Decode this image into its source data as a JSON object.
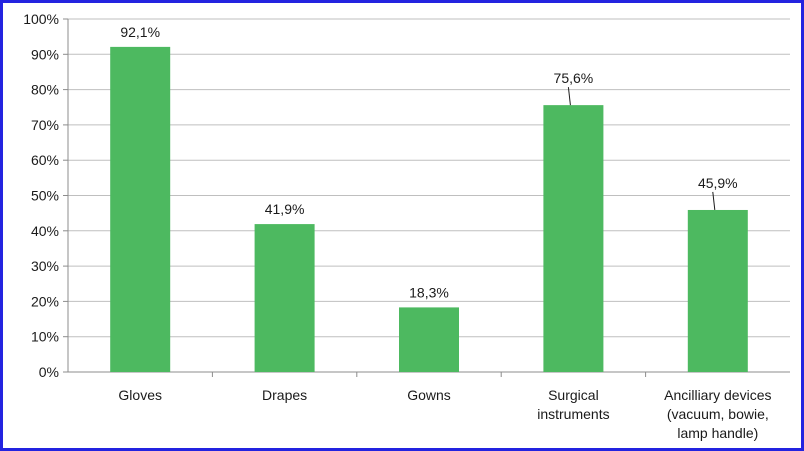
{
  "chart_data": {
    "type": "bar",
    "title": "",
    "xlabel": "",
    "ylabel": "",
    "ylim": [
      0,
      100
    ],
    "yticks": [
      "0%",
      "10%",
      "20%",
      "30%",
      "40%",
      "50%",
      "60%",
      "70%",
      "80%",
      "90%",
      "100%"
    ],
    "grid": true,
    "bar_color": "#4db960",
    "categories": [
      [
        "Gloves"
      ],
      [
        "Drapes"
      ],
      [
        "Gowns"
      ],
      [
        "Surgical",
        "instruments"
      ],
      [
        "Ancilliary devices",
        "(vacuum, bowie,",
        "lamp handle)"
      ]
    ],
    "values": [
      92.1,
      41.9,
      18.3,
      75.6,
      45.9
    ],
    "data_labels": [
      "92,1%",
      "41,9%",
      "18,3%",
      "75,6%",
      "45,9%"
    ]
  },
  "colors": {
    "frame": "#2323e0",
    "bar": "#4db960",
    "grid": "#bfbfbf"
  }
}
